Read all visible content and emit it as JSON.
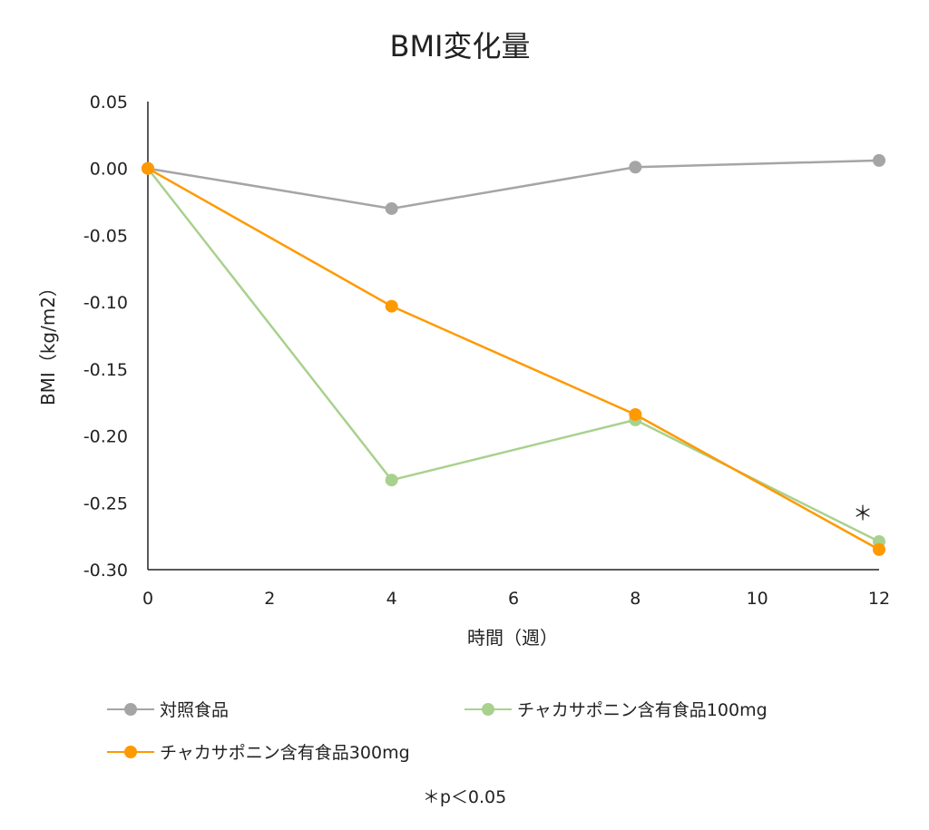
{
  "chart_data": {
    "type": "line",
    "title": "BMI変化量",
    "xlabel": "時間（週）",
    "ylabel": "BMI（kg/m2）",
    "xlim": [
      0,
      12
    ],
    "ylim": [
      -0.3,
      0.05
    ],
    "x_ticks": [
      "0",
      "2",
      "4",
      "6",
      "8",
      "10",
      "12"
    ],
    "y_ticks": [
      "0.05",
      "0.00",
      "-0.05",
      "-0.10",
      "-0.15",
      "-0.20",
      "-0.25",
      "-0.30"
    ],
    "grid": false,
    "legend_position": "bottom",
    "series": [
      {
        "name": "対照食品",
        "color": "#a5a5a5",
        "x": [
          0,
          4,
          8,
          12
        ],
        "y": [
          0.0,
          -0.03,
          0.001,
          0.006
        ]
      },
      {
        "name": "チャカサポニン含有食品100mg",
        "color": "#a9d18e",
        "x": [
          0,
          4,
          8,
          12
        ],
        "y": [
          0.0,
          -0.233,
          -0.188,
          -0.279
        ]
      },
      {
        "name": "チャカサポニン含有食品300mg",
        "color": "#ff9900",
        "x": [
          0,
          4,
          8,
          12
        ],
        "y": [
          0.0,
          -0.103,
          -0.184,
          -0.285
        ]
      }
    ],
    "annotations": [
      {
        "text": "＊",
        "x": 12,
        "y": -0.255
      }
    ]
  },
  "footnote": "＊p＜0.05"
}
